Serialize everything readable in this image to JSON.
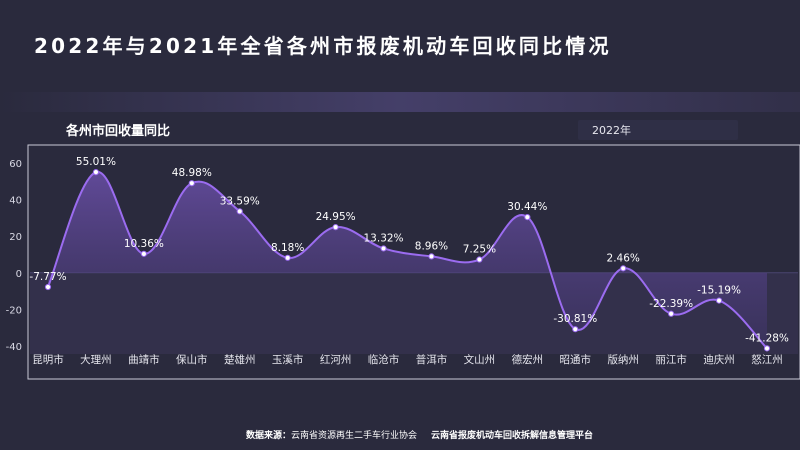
{
  "header": {
    "title": "2022年与2021年全省各州市报废机动车回收同比情况"
  },
  "panel": {
    "title": "各州市回收量同比",
    "year_selector": "2022年"
  },
  "chart_data": {
    "type": "line",
    "title": "各州市回收量同比",
    "categories": [
      "昆明市",
      "大理州",
      "曲靖市",
      "保山市",
      "楚雄州",
      "玉溪市",
      "红河州",
      "临沧市",
      "普洱市",
      "文山州",
      "德宏州",
      "昭通市",
      "版纳州",
      "丽江市",
      "迪庆州",
      "怒江州"
    ],
    "values": [
      -7.77,
      55.01,
      10.36,
      48.98,
      33.59,
      8.18,
      24.95,
      13.32,
      8.96,
      7.25,
      30.44,
      -30.81,
      2.46,
      -22.39,
      -15.19,
      -41.28
    ],
    "data_labels": [
      "-7.77%",
      "55.01%",
      "10.36%",
      "48.98%",
      "33.59%",
      "8.18%",
      "24.95%",
      "13.32%",
      "8.96%",
      "7.25%",
      "30.44%",
      "-30.81%",
      "2.46%",
      "-22.39%",
      "-15.19%",
      "-41.28%"
    ],
    "yticks": [
      "60",
      "40",
      "20",
      "0",
      "-20",
      "-40"
    ],
    "ylim": [
      -40,
      60
    ],
    "xlabel": "",
    "ylabel": "",
    "series_color": "#9b6cf0",
    "fill_color": "#5b4690"
  },
  "footer": {
    "source_label": "数据来源：",
    "source_org1": "云南省资源再生二手车行业协会",
    "source_org2": "云南省报废机动车回收拆解信息管理平台"
  }
}
